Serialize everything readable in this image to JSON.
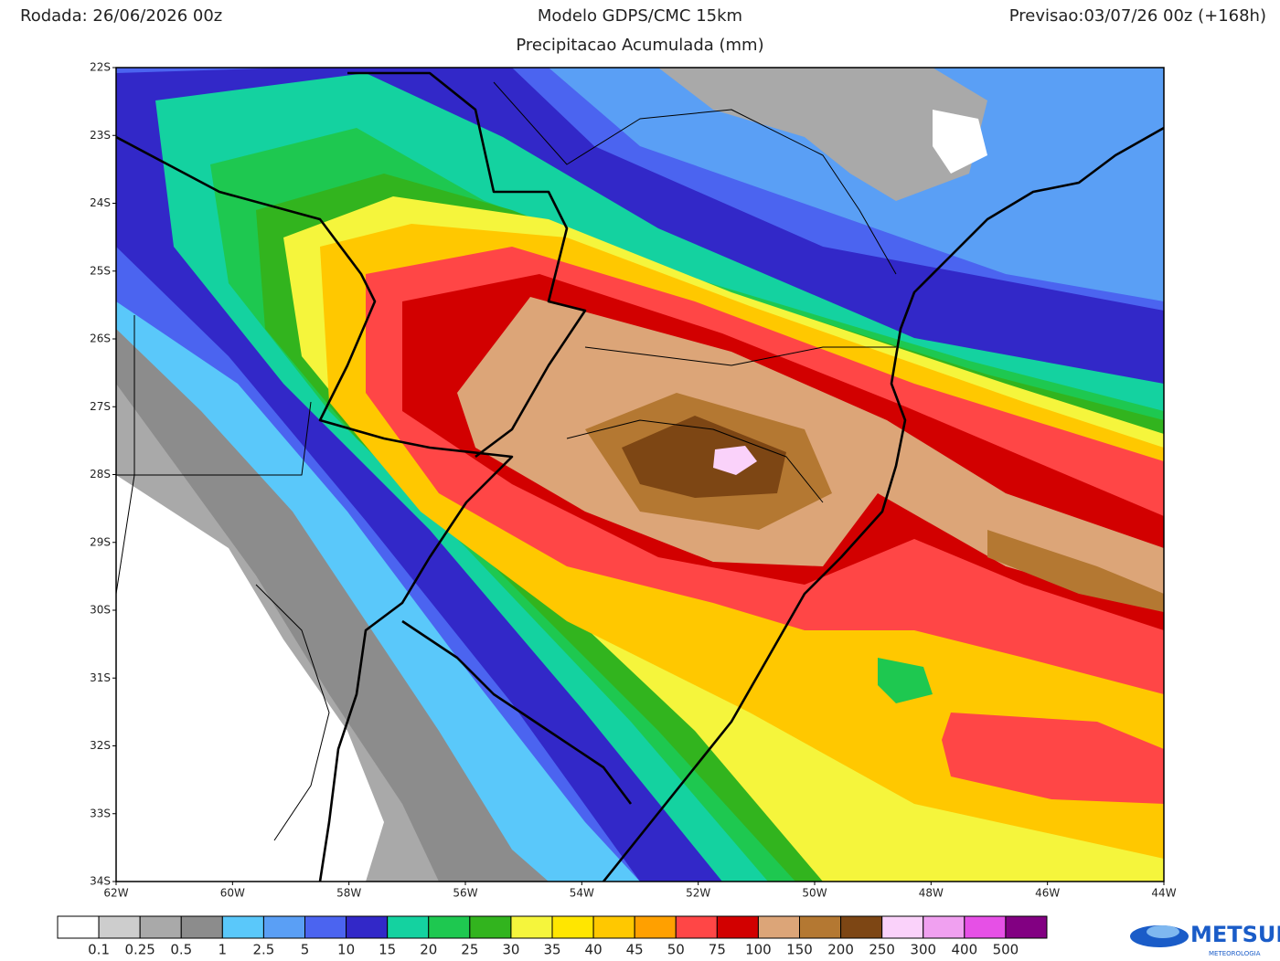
{
  "header": {
    "run": "Rodada: 26/06/2026 00z",
    "model": "Modelo GDPS/CMC 15km",
    "forecast": "Previsao:03/07/26 00z (+168h)",
    "subtitle": "Precipitacao Acumulada (mm)"
  },
  "map": {
    "lat_labels": [
      "22S",
      "23S",
      "24S",
      "25S",
      "26S",
      "27S",
      "28S",
      "29S",
      "30S",
      "31S",
      "32S",
      "33S",
      "34S"
    ],
    "lon_labels": [
      "62W",
      "60W",
      "58W",
      "56W",
      "54W",
      "52W",
      "50W",
      "48W",
      "46W",
      "44W"
    ]
  },
  "colorbar": {
    "colors": [
      "#ffffff",
      "#cdcdcd",
      "#a9a9a9",
      "#8c8c8c",
      "#5ac8fa",
      "#5a9ff5",
      "#4b64f0",
      "#3228c8",
      "#14d2a0",
      "#1ec850",
      "#32b41e",
      "#f5f53c",
      "#ffe600",
      "#ffc800",
      "#ffa000",
      "#ff4646",
      "#d20000",
      "#dca578",
      "#b47832",
      "#7d4614",
      "#fad2fa",
      "#f0a0f0",
      "#e650e6",
      "#820082"
    ],
    "labels": [
      "0.1",
      "0.25",
      "0.5",
      "1",
      "2.5",
      "5",
      "10",
      "15",
      "20",
      "25",
      "30",
      "35",
      "40",
      "45",
      "50",
      "75",
      "100",
      "150",
      "200",
      "250",
      "300",
      "400",
      "500"
    ]
  },
  "logo": {
    "name": "METSUL",
    "tagline": "METEOROLOGIA"
  }
}
